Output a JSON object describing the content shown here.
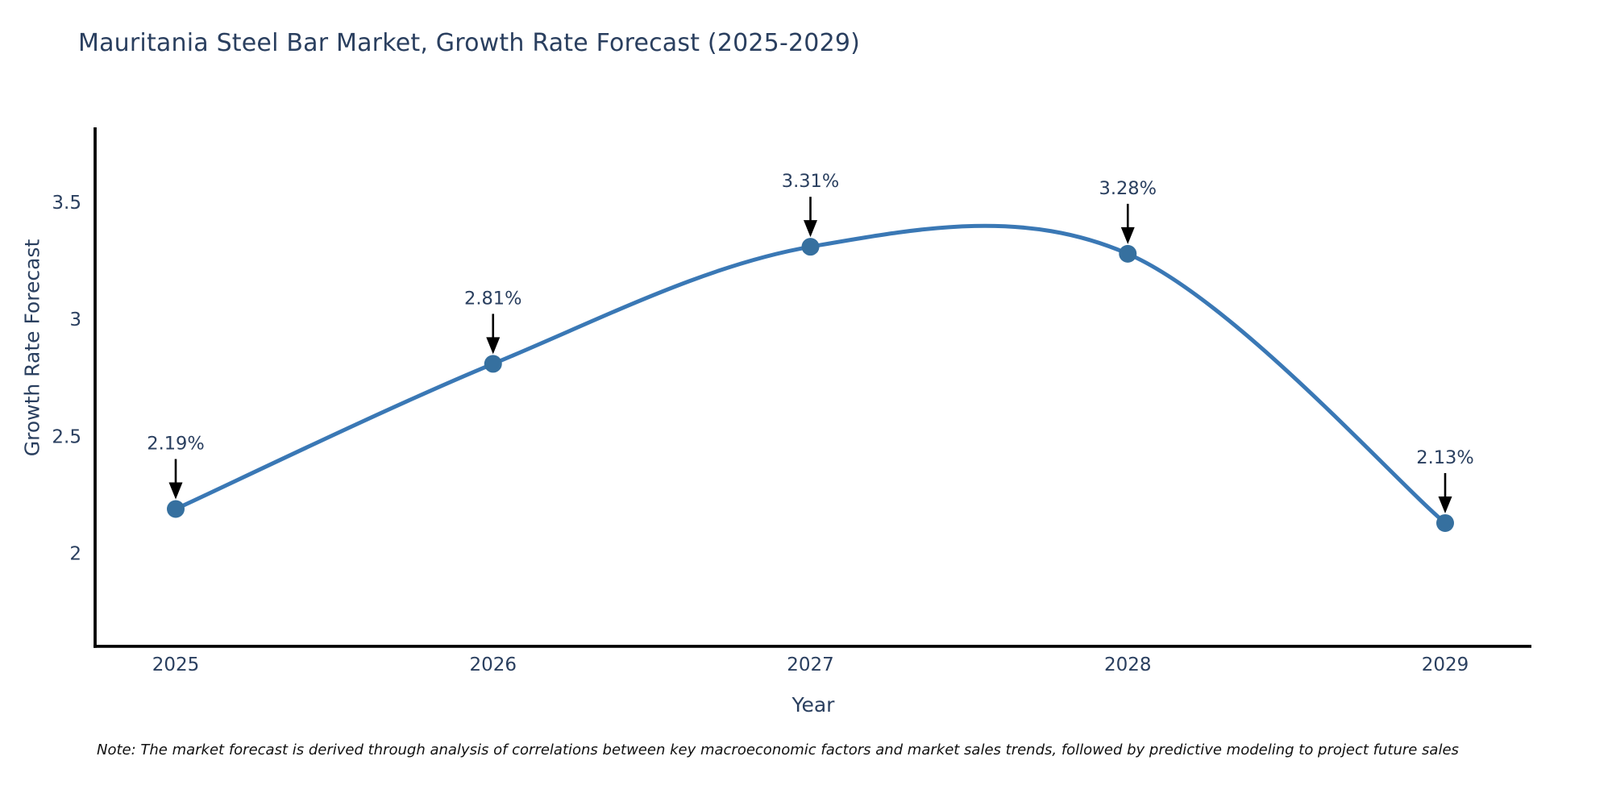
{
  "title": "Mauritania Steel Bar Market, Growth Rate Forecast (2025-2029)",
  "note": "Note: The market forecast is derived through analysis of correlations between key macroeconomic factors and market sales trends, followed by predictive modeling to project future sales",
  "chart_data": {
    "type": "line",
    "title": "Mauritania Steel Bar Market, Growth Rate Forecast (2025-2029)",
    "x": [
      "2025",
      "2026",
      "2027",
      "2028",
      "2029"
    ],
    "series": [
      {
        "name": "Growth Rate Forecast",
        "values": [
          2.19,
          2.81,
          3.31,
          3.28,
          2.13
        ]
      }
    ],
    "data_labels": [
      "2.19%",
      "2.81%",
      "3.31%",
      "3.28%",
      "2.13%"
    ],
    "xlabel": "Year",
    "ylabel": "Growth Rate Forecast",
    "ytick_values": [
      2,
      2.5,
      3,
      3.5
    ],
    "ytick_labels": [
      "2",
      "2.5",
      "3",
      "3.5"
    ],
    "ylim": [
      1.61,
      3.82
    ],
    "grid": false,
    "legend_position": "none",
    "line_shape": "spline",
    "colors": {
      "line": "#3a78b5",
      "marker": "#36709f",
      "axis": "#000000",
      "tick_text": "#2a3f5f",
      "annotation_text": "#2a3f5f",
      "annotation_arrow": "#000000",
      "background": "#ffffff"
    }
  }
}
